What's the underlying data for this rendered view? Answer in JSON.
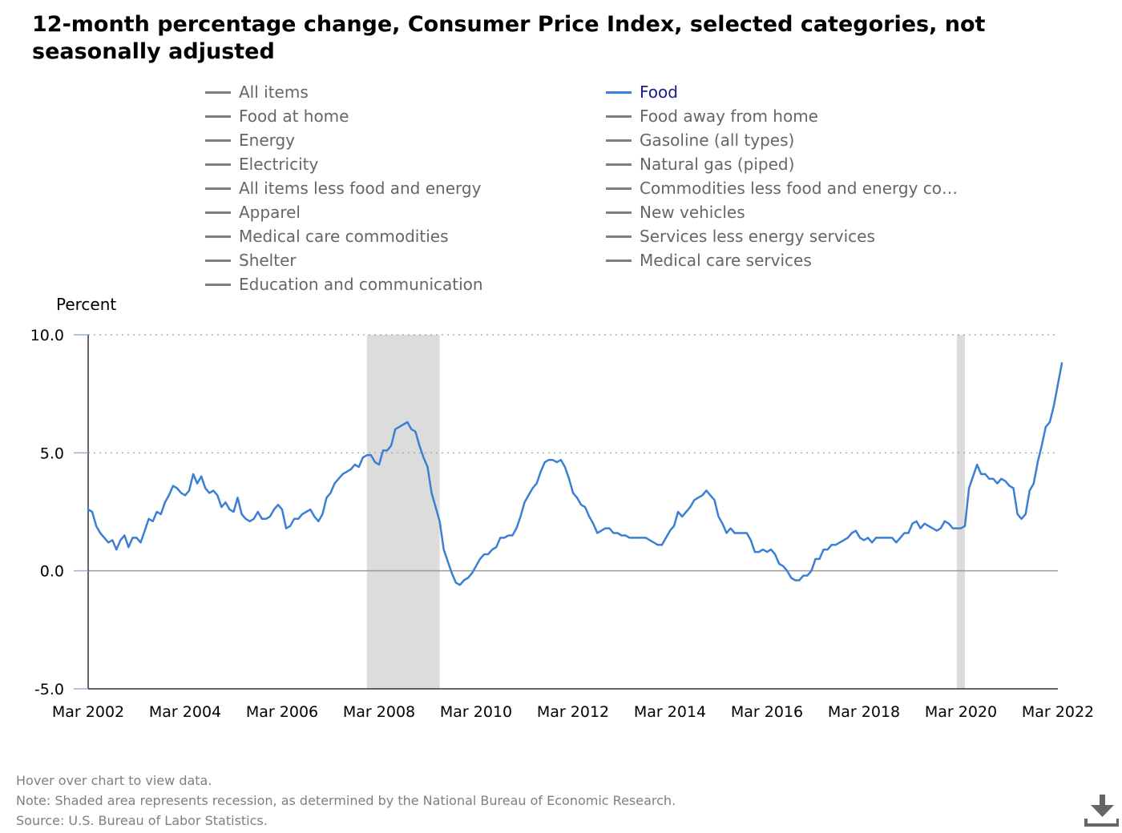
{
  "title": "12-month percentage change, Consumer Price Index, selected categories, not seasonally adjusted",
  "legend": {
    "left_column": [
      "All items",
      "Food at home",
      "Energy",
      "Electricity",
      "All items less food and energy",
      "Apparel",
      "Medical care commodities",
      "Shelter",
      "Education and communication"
    ],
    "right_column": [
      "Food",
      "Food away from home",
      "Gasoline (all types)",
      "Natural gas (piped)",
      "Commodities less food and energy com…",
      "New vehicles",
      "Services less energy services",
      "Medical care services"
    ],
    "active": "Food"
  },
  "colors": {
    "active_series": "#3b7fd4",
    "inactive_series": "#7f7f7f",
    "recession": "#dcdcdc",
    "grid": "#aaaaaa"
  },
  "footer": {
    "hover": "Hover over chart to view data.",
    "note": "Note: Shaded area represents recession, as determined by the National Bureau of Economic Research.",
    "source": "Source: U.S. Bureau of Labor Statistics."
  },
  "download_icon": "download-icon",
  "chart_data": {
    "type": "line",
    "title": "12-month percentage change, Consumer Price Index, selected categories, not seasonally adjusted",
    "ylabel": "Percent",
    "xlabel": "",
    "ylim": [
      -5,
      10
    ],
    "yticks": [
      -5,
      0,
      5,
      10
    ],
    "ytick_labels": [
      "-5.0",
      "0.0",
      "5.0",
      "10.0"
    ],
    "xlim": [
      "2002-03",
      "2022-03"
    ],
    "xticks": [
      "Mar 2002",
      "Mar 2004",
      "Mar 2006",
      "Mar 2008",
      "Mar 2010",
      "Mar 2012",
      "Mar 2014",
      "Mar 2016",
      "Mar 2018",
      "Mar 2020",
      "Mar 2022"
    ],
    "grid": {
      "horizontal_dotted_at": [
        5,
        10
      ]
    },
    "recessions": [
      {
        "start": "2007-12",
        "end": "2009-06"
      },
      {
        "start": "2020-02",
        "end": "2020-04"
      }
    ],
    "series": [
      {
        "name": "Food",
        "color": "#3b7fd4",
        "points": [
          [
            "2002-03",
            2.6
          ],
          [
            "2002-04",
            2.5
          ],
          [
            "2002-05",
            1.9
          ],
          [
            "2002-06",
            1.6
          ],
          [
            "2002-07",
            1.4
          ],
          [
            "2002-08",
            1.2
          ],
          [
            "2002-09",
            1.3
          ],
          [
            "2002-10",
            0.9
          ],
          [
            "2002-11",
            1.3
          ],
          [
            "2002-12",
            1.5
          ],
          [
            "2003-01",
            1.0
          ],
          [
            "2003-02",
            1.4
          ],
          [
            "2003-03",
            1.4
          ],
          [
            "2003-04",
            1.2
          ],
          [
            "2003-05",
            1.7
          ],
          [
            "2003-06",
            2.2
          ],
          [
            "2003-07",
            2.1
          ],
          [
            "2003-08",
            2.5
          ],
          [
            "2003-09",
            2.4
          ],
          [
            "2003-10",
            2.9
          ],
          [
            "2003-11",
            3.2
          ],
          [
            "2003-12",
            3.6
          ],
          [
            "2004-01",
            3.5
          ],
          [
            "2004-02",
            3.3
          ],
          [
            "2004-03",
            3.2
          ],
          [
            "2004-04",
            3.4
          ],
          [
            "2004-05",
            4.1
          ],
          [
            "2004-06",
            3.7
          ],
          [
            "2004-07",
            4.0
          ],
          [
            "2004-08",
            3.5
          ],
          [
            "2004-09",
            3.3
          ],
          [
            "2004-10",
            3.4
          ],
          [
            "2004-11",
            3.2
          ],
          [
            "2004-12",
            2.7
          ],
          [
            "2005-01",
            2.9
          ],
          [
            "2005-02",
            2.6
          ],
          [
            "2005-03",
            2.5
          ],
          [
            "2005-04",
            3.1
          ],
          [
            "2005-05",
            2.4
          ],
          [
            "2005-06",
            2.2
          ],
          [
            "2005-07",
            2.1
          ],
          [
            "2005-08",
            2.2
          ],
          [
            "2005-09",
            2.5
          ],
          [
            "2005-10",
            2.2
          ],
          [
            "2005-11",
            2.2
          ],
          [
            "2005-12",
            2.3
          ],
          [
            "2006-01",
            2.6
          ],
          [
            "2006-02",
            2.8
          ],
          [
            "2006-03",
            2.6
          ],
          [
            "2006-04",
            1.8
          ],
          [
            "2006-05",
            1.9
          ],
          [
            "2006-06",
            2.2
          ],
          [
            "2006-07",
            2.2
          ],
          [
            "2006-08",
            2.4
          ],
          [
            "2006-09",
            2.5
          ],
          [
            "2006-10",
            2.6
          ],
          [
            "2006-11",
            2.3
          ],
          [
            "2006-12",
            2.1
          ],
          [
            "2007-01",
            2.4
          ],
          [
            "2007-02",
            3.1
          ],
          [
            "2007-03",
            3.3
          ],
          [
            "2007-04",
            3.7
          ],
          [
            "2007-05",
            3.9
          ],
          [
            "2007-06",
            4.1
          ],
          [
            "2007-07",
            4.2
          ],
          [
            "2007-08",
            4.3
          ],
          [
            "2007-09",
            4.5
          ],
          [
            "2007-10",
            4.4
          ],
          [
            "2007-11",
            4.8
          ],
          [
            "2007-12",
            4.9
          ],
          [
            "2008-01",
            4.9
          ],
          [
            "2008-02",
            4.6
          ],
          [
            "2008-03",
            4.5
          ],
          [
            "2008-04",
            5.1
          ],
          [
            "2008-05",
            5.1
          ],
          [
            "2008-06",
            5.3
          ],
          [
            "2008-07",
            6.0
          ],
          [
            "2008-08",
            6.1
          ],
          [
            "2008-09",
            6.2
          ],
          [
            "2008-10",
            6.3
          ],
          [
            "2008-11",
            6.0
          ],
          [
            "2008-12",
            5.9
          ],
          [
            "2009-01",
            5.3
          ],
          [
            "2009-02",
            4.8
          ],
          [
            "2009-03",
            4.4
          ],
          [
            "2009-04",
            3.3
          ],
          [
            "2009-05",
            2.7
          ],
          [
            "2009-06",
            2.1
          ],
          [
            "2009-07",
            0.9
          ],
          [
            "2009-08",
            0.4
          ],
          [
            "2009-09",
            -0.1
          ],
          [
            "2009-10",
            -0.5
          ],
          [
            "2009-11",
            -0.6
          ],
          [
            "2009-12",
            -0.4
          ],
          [
            "2010-01",
            -0.3
          ],
          [
            "2010-02",
            -0.1
          ],
          [
            "2010-03",
            0.2
          ],
          [
            "2010-04",
            0.5
          ],
          [
            "2010-05",
            0.7
          ],
          [
            "2010-06",
            0.7
          ],
          [
            "2010-07",
            0.9
          ],
          [
            "2010-08",
            1.0
          ],
          [
            "2010-09",
            1.4
          ],
          [
            "2010-10",
            1.4
          ],
          [
            "2010-11",
            1.5
          ],
          [
            "2010-12",
            1.5
          ],
          [
            "2011-01",
            1.8
          ],
          [
            "2011-02",
            2.3
          ],
          [
            "2011-03",
            2.9
          ],
          [
            "2011-04",
            3.2
          ],
          [
            "2011-05",
            3.5
          ],
          [
            "2011-06",
            3.7
          ],
          [
            "2011-07",
            4.2
          ],
          [
            "2011-08",
            4.6
          ],
          [
            "2011-09",
            4.7
          ],
          [
            "2011-10",
            4.7
          ],
          [
            "2011-11",
            4.6
          ],
          [
            "2011-12",
            4.7
          ],
          [
            "2012-01",
            4.4
          ],
          [
            "2012-02",
            3.9
          ],
          [
            "2012-03",
            3.3
          ],
          [
            "2012-04",
            3.1
          ],
          [
            "2012-05",
            2.8
          ],
          [
            "2012-06",
            2.7
          ],
          [
            "2012-07",
            2.3
          ],
          [
            "2012-08",
            2.0
          ],
          [
            "2012-09",
            1.6
          ],
          [
            "2012-10",
            1.7
          ],
          [
            "2012-11",
            1.8
          ],
          [
            "2012-12",
            1.8
          ],
          [
            "2013-01",
            1.6
          ],
          [
            "2013-02",
            1.6
          ],
          [
            "2013-03",
            1.5
          ],
          [
            "2013-04",
            1.5
          ],
          [
            "2013-05",
            1.4
          ],
          [
            "2013-06",
            1.4
          ],
          [
            "2013-07",
            1.4
          ],
          [
            "2013-08",
            1.4
          ],
          [
            "2013-09",
            1.4
          ],
          [
            "2013-10",
            1.3
          ],
          [
            "2013-11",
            1.2
          ],
          [
            "2013-12",
            1.1
          ],
          [
            "2014-01",
            1.1
          ],
          [
            "2014-02",
            1.4
          ],
          [
            "2014-03",
            1.7
          ],
          [
            "2014-04",
            1.9
          ],
          [
            "2014-05",
            2.5
          ],
          [
            "2014-06",
            2.3
          ],
          [
            "2014-07",
            2.5
          ],
          [
            "2014-08",
            2.7
          ],
          [
            "2014-09",
            3.0
          ],
          [
            "2014-10",
            3.1
          ],
          [
            "2014-11",
            3.2
          ],
          [
            "2014-12",
            3.4
          ],
          [
            "2015-01",
            3.2
          ],
          [
            "2015-02",
            3.0
          ],
          [
            "2015-03",
            2.3
          ],
          [
            "2015-04",
            2.0
          ],
          [
            "2015-05",
            1.6
          ],
          [
            "2015-06",
            1.8
          ],
          [
            "2015-07",
            1.6
          ],
          [
            "2015-08",
            1.6
          ],
          [
            "2015-09",
            1.6
          ],
          [
            "2015-10",
            1.6
          ],
          [
            "2015-11",
            1.3
          ],
          [
            "2015-12",
            0.8
          ],
          [
            "2016-01",
            0.8
          ],
          [
            "2016-02",
            0.9
          ],
          [
            "2016-03",
            0.8
          ],
          [
            "2016-04",
            0.9
          ],
          [
            "2016-05",
            0.7
          ],
          [
            "2016-06",
            0.3
          ],
          [
            "2016-07",
            0.2
          ],
          [
            "2016-08",
            0.0
          ],
          [
            "2016-09",
            -0.3
          ],
          [
            "2016-10",
            -0.4
          ],
          [
            "2016-11",
            -0.4
          ],
          [
            "2016-12",
            -0.2
          ],
          [
            "2017-01",
            -0.2
          ],
          [
            "2017-02",
            0.0
          ],
          [
            "2017-03",
            0.5
          ],
          [
            "2017-04",
            0.5
          ],
          [
            "2017-05",
            0.9
          ],
          [
            "2017-06",
            0.9
          ],
          [
            "2017-07",
            1.1
          ],
          [
            "2017-08",
            1.1
          ],
          [
            "2017-09",
            1.2
          ],
          [
            "2017-10",
            1.3
          ],
          [
            "2017-11",
            1.4
          ],
          [
            "2017-12",
            1.6
          ],
          [
            "2018-01",
            1.7
          ],
          [
            "2018-02",
            1.4
          ],
          [
            "2018-03",
            1.3
          ],
          [
            "2018-04",
            1.4
          ],
          [
            "2018-05",
            1.2
          ],
          [
            "2018-06",
            1.4
          ],
          [
            "2018-07",
            1.4
          ],
          [
            "2018-08",
            1.4
          ],
          [
            "2018-09",
            1.4
          ],
          [
            "2018-10",
            1.4
          ],
          [
            "2018-11",
            1.2
          ],
          [
            "2018-12",
            1.4
          ],
          [
            "2019-01",
            1.6
          ],
          [
            "2019-02",
            1.6
          ],
          [
            "2019-03",
            2.0
          ],
          [
            "2019-04",
            2.1
          ],
          [
            "2019-05",
            1.8
          ],
          [
            "2019-06",
            2.0
          ],
          [
            "2019-07",
            1.9
          ],
          [
            "2019-08",
            1.8
          ],
          [
            "2019-09",
            1.7
          ],
          [
            "2019-10",
            1.8
          ],
          [
            "2019-11",
            2.1
          ],
          [
            "2019-12",
            2.0
          ],
          [
            "2020-01",
            1.8
          ],
          [
            "2020-02",
            1.8
          ],
          [
            "2020-03",
            1.8
          ],
          [
            "2020-04",
            1.9
          ],
          [
            "2020-05",
            3.5
          ],
          [
            "2020-06",
            4.0
          ],
          [
            "2020-07",
            4.5
          ],
          [
            "2020-08",
            4.1
          ],
          [
            "2020-09",
            4.1
          ],
          [
            "2020-10",
            3.9
          ],
          [
            "2020-11",
            3.9
          ],
          [
            "2020-12",
            3.7
          ],
          [
            "2021-01",
            3.9
          ],
          [
            "2021-02",
            3.8
          ],
          [
            "2021-03",
            3.6
          ],
          [
            "2021-04",
            3.5
          ],
          [
            "2021-05",
            2.4
          ],
          [
            "2021-06",
            2.2
          ],
          [
            "2021-07",
            2.4
          ],
          [
            "2021-08",
            3.4
          ],
          [
            "2021-09",
            3.7
          ],
          [
            "2021-10",
            4.6
          ],
          [
            "2021-11",
            5.3
          ],
          [
            "2021-12",
            6.1
          ],
          [
            "2022-01",
            6.3
          ],
          [
            "2022-02",
            7.0
          ],
          [
            "2022-03",
            7.9
          ],
          [
            "2022-04",
            8.8
          ]
        ]
      }
    ]
  }
}
